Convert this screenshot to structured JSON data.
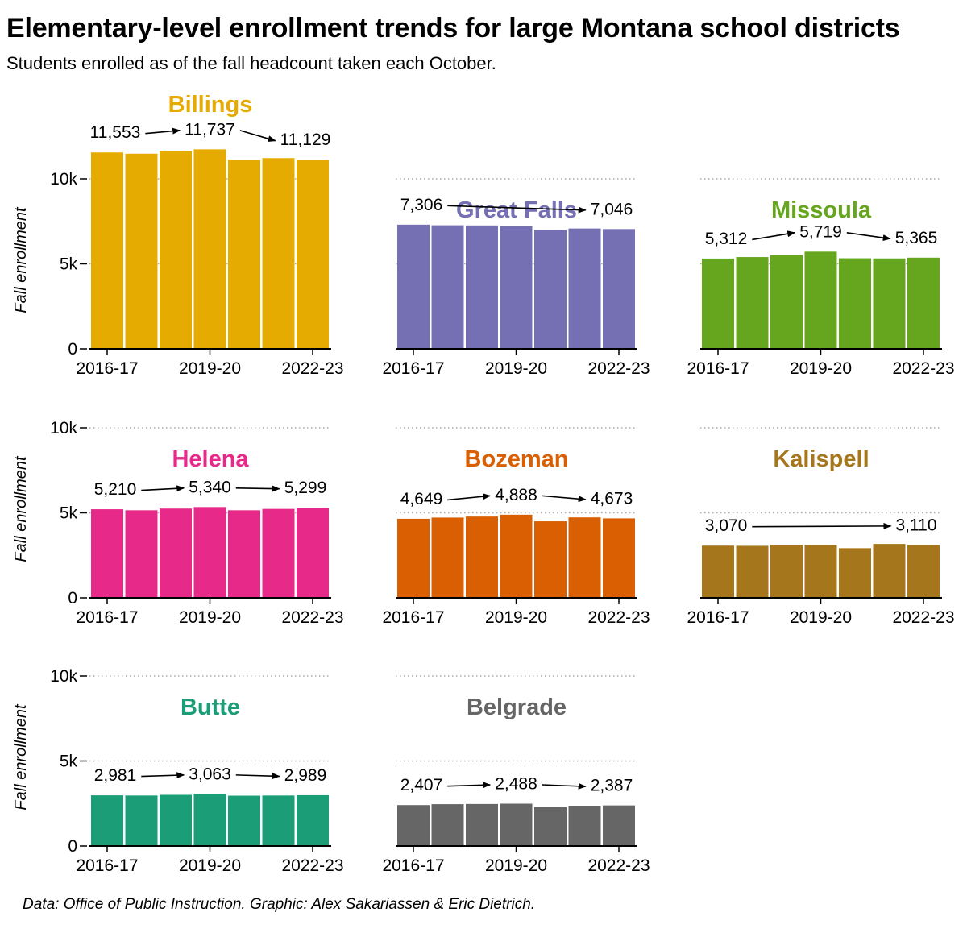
{
  "title": "Elementary-level enrollment trends for large Montana school districts",
  "subtitle": "Students enrolled as of the fall headcount taken each October.",
  "source": "Data: Office of Public Instruction. Graphic: Alex Sakariassen & Eric Dietrich.",
  "chart_data": {
    "type": "bar",
    "ylabel": "Fall enrollment",
    "ylim": [
      0,
      10000
    ],
    "yticks": [
      0,
      5000,
      10000
    ],
    "ytick_labels": [
      "0",
      "5k",
      "10k"
    ],
    "categories": [
      "2016-17",
      "2017-18",
      "2018-19",
      "2019-20",
      "2020-21",
      "2021-22",
      "2022-23"
    ],
    "xtick_labels": [
      "2016-17",
      "2019-20",
      "2022-23"
    ],
    "grid": "dotted horizontal",
    "series": [
      {
        "name": "Billings",
        "color": "#e5ab00",
        "values": [
          11553,
          11480,
          11640,
          11737,
          11130,
          11220,
          11129
        ],
        "labels": [
          "11,553",
          "11,737",
          "11,129"
        ]
      },
      {
        "name": "Great Falls",
        "color": "#7570b3",
        "values": [
          7306,
          7270,
          7260,
          7230,
          7000,
          7080,
          7046
        ],
        "labels": [
          "7,306",
          "7,046"
        ]
      },
      {
        "name": "Missoula",
        "color": "#66a61e",
        "values": [
          5312,
          5400,
          5520,
          5719,
          5330,
          5320,
          5365
        ],
        "labels": [
          "5,312",
          "5,719",
          "5,365"
        ]
      },
      {
        "name": "Helena",
        "color": "#e7298a",
        "values": [
          5210,
          5150,
          5250,
          5340,
          5150,
          5230,
          5299
        ],
        "labels": [
          "5,210",
          "5,340",
          "5,299"
        ]
      },
      {
        "name": "Bozeman",
        "color": "#d95f02",
        "values": [
          4649,
          4720,
          4780,
          4888,
          4500,
          4730,
          4673
        ],
        "labels": [
          "4,649",
          "4,888",
          "4,673"
        ]
      },
      {
        "name": "Kalispell",
        "color": "#a6761d",
        "values": [
          3070,
          3060,
          3120,
          3110,
          2920,
          3170,
          3110
        ],
        "labels": [
          "3,070",
          "3,110"
        ]
      },
      {
        "name": "Butte",
        "color": "#1b9e77",
        "values": [
          2981,
          2970,
          3010,
          3063,
          2960,
          2970,
          2989
        ],
        "labels": [
          "2,981",
          "3,063",
          "2,989"
        ]
      },
      {
        "name": "Belgrade",
        "color": "#666666",
        "values": [
          2407,
          2460,
          2470,
          2488,
          2300,
          2370,
          2387
        ],
        "labels": [
          "2,407",
          "2,488",
          "2,387"
        ]
      }
    ]
  }
}
